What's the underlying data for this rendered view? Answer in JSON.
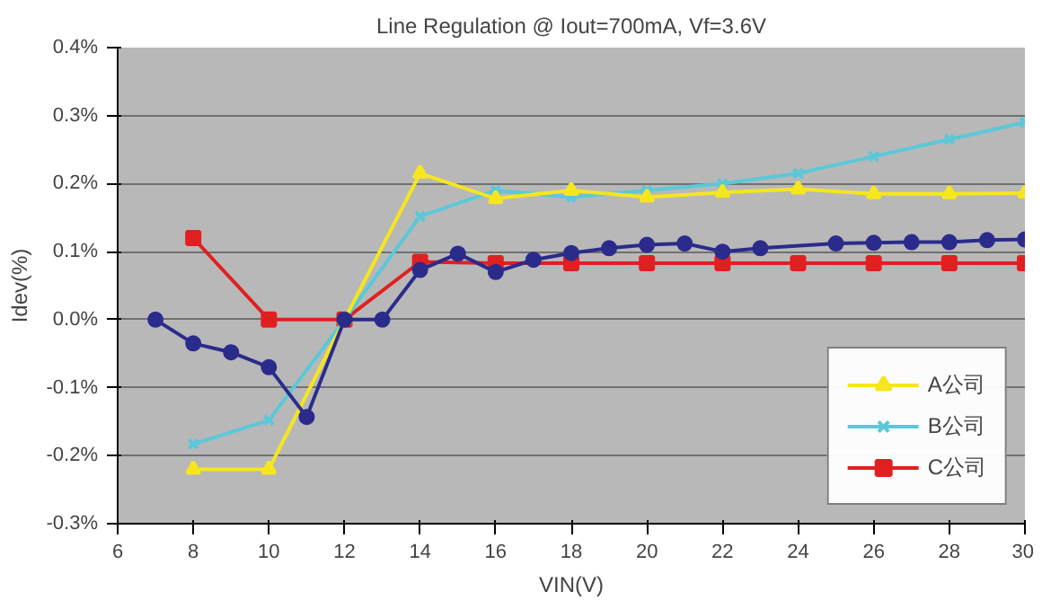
{
  "chart_data": {
    "type": "line",
    "title": "Line Regulation @ Iout=700mA, Vf=3.6V",
    "xlabel": "VIN(V)",
    "ylabel": "Idev(%)",
    "xlim": [
      6,
      30
    ],
    "xticks": [
      6,
      8,
      10,
      12,
      14,
      16,
      18,
      20,
      22,
      24,
      26,
      28,
      30
    ],
    "ylim": [
      -0.3,
      0.4
    ],
    "yticks": [
      {
        "value": -0.3,
        "label": "-0.3%"
      },
      {
        "value": -0.2,
        "label": "-0.2%"
      },
      {
        "value": -0.1,
        "label": "-0.1%"
      },
      {
        "value": 0,
        "label": "0.0%"
      },
      {
        "value": 0.1,
        "label": "0.1%"
      },
      {
        "value": 0.2,
        "label": "0.2%"
      },
      {
        "value": 0.3,
        "label": "0.3%"
      },
      {
        "value": 0.4,
        "label": "0.4%"
      }
    ],
    "grid": "y",
    "legend": "bottom right",
    "series": [
      {
        "color": "#2b2b8c",
        "marker": "circle",
        "x": [
          7,
          8,
          9,
          10,
          11,
          12,
          13,
          14,
          15,
          16,
          17,
          18,
          19,
          20,
          21,
          22,
          23,
          25,
          26,
          27,
          28,
          29,
          30
        ],
        "values": [
          0,
          -0.035,
          -0.048,
          -0.07,
          -0.143,
          0,
          0,
          0.073,
          0.097,
          0.07,
          0.088,
          0.098,
          0.105,
          0.11,
          0.112,
          0.1,
          0.105,
          0.112,
          0.113,
          0.114,
          0.114,
          0.117,
          0.118
        ]
      },
      {
        "name": "A公司",
        "color": "#f5e61e",
        "marker": "triangle",
        "x": [
          8,
          10,
          12,
          14,
          16,
          18,
          20,
          22,
          24,
          26,
          28,
          30
        ],
        "values": [
          -0.22,
          -0.22,
          0,
          0.215,
          0.178,
          0.19,
          0.18,
          0.187,
          0.192,
          0.185,
          0.185,
          0.186
        ]
      },
      {
        "name": "B公司",
        "color": "#5bc8d8",
        "marker": "x",
        "x": [
          8,
          10,
          12,
          14,
          16,
          18,
          20,
          22,
          24,
          26,
          28,
          30
        ],
        "values": [
          -0.183,
          -0.148,
          0,
          0.152,
          0.19,
          0.18,
          0.19,
          0.2,
          0.215,
          0.24,
          0.265,
          0.29
        ]
      },
      {
        "name": "C公司",
        "color": "#e02020",
        "marker": "square",
        "x": [
          8,
          10,
          12,
          14,
          16,
          18,
          20,
          22,
          24,
          26,
          28,
          30
        ],
        "values": [
          0.12,
          0,
          0,
          0.085,
          0.083,
          0.083,
          0.083,
          0.083,
          0.083,
          0.083,
          0.083,
          0.083
        ]
      }
    ]
  }
}
